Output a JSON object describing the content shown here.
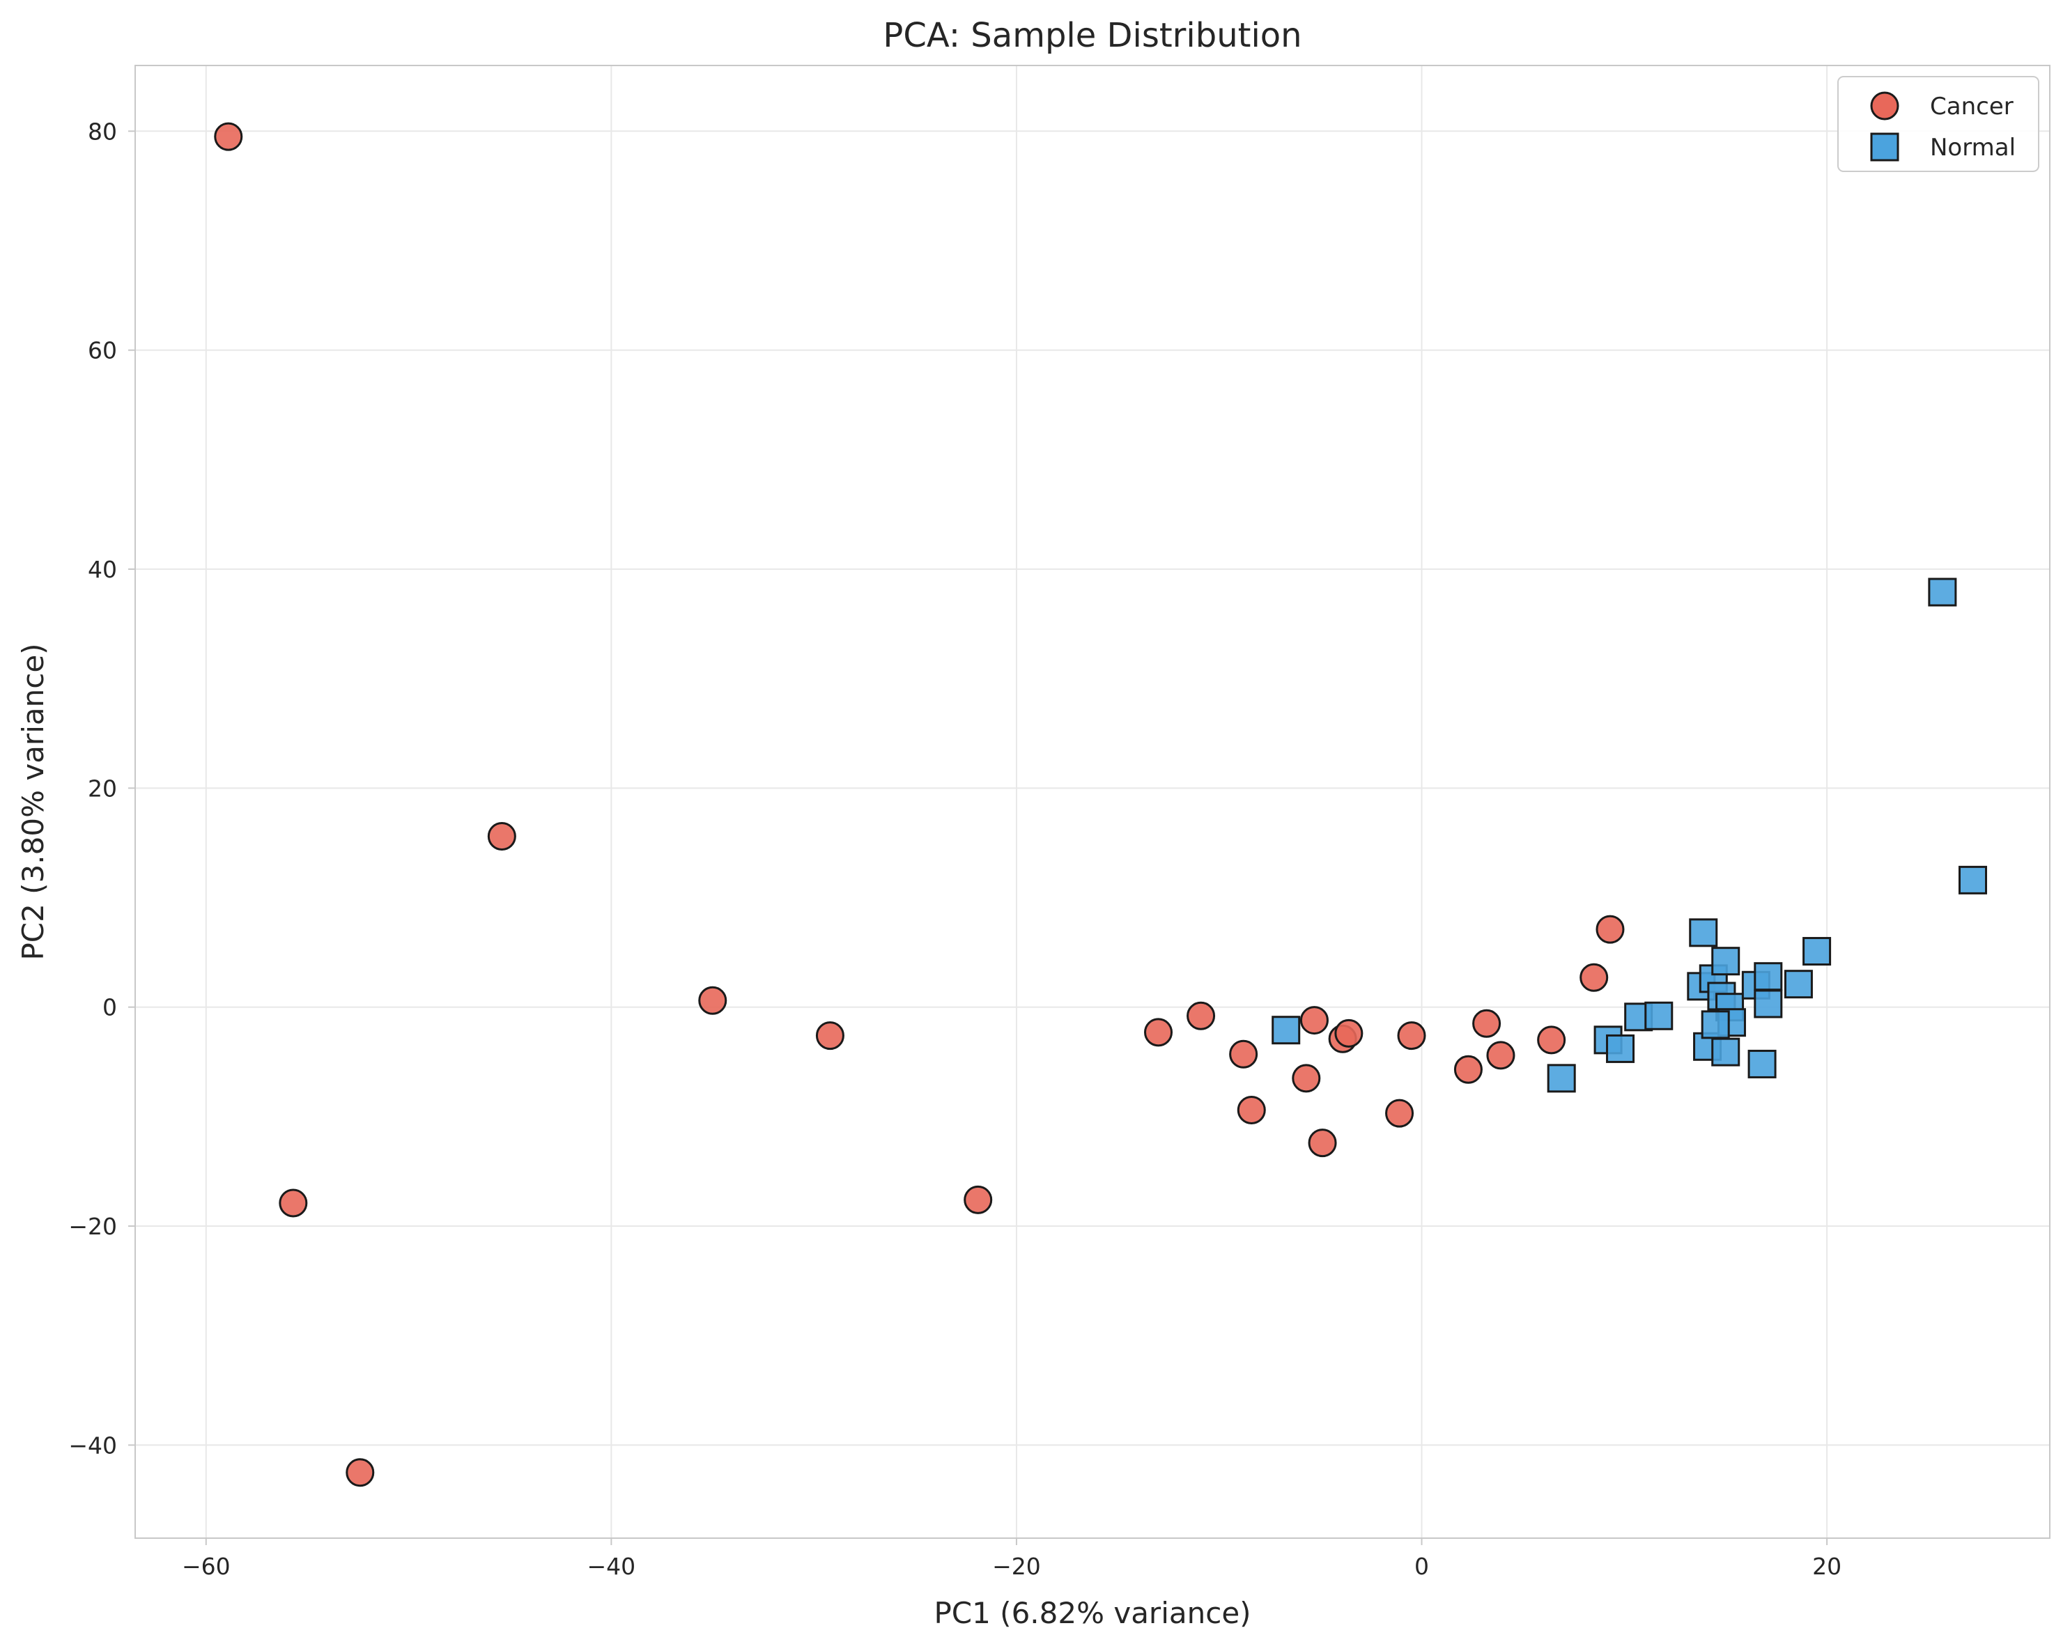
{
  "chart_data": {
    "type": "scatter",
    "title": "PCA: Sample Distribution",
    "xlabel": "PC1 (6.82% variance)",
    "ylabel": "PC2 (3.80% variance)",
    "xlim": [
      -63.5,
      31
    ],
    "ylim": [
      -48.5,
      86
    ],
    "xticks": [
      -60,
      -40,
      -20,
      0,
      20
    ],
    "yticks": [
      -40,
      -20,
      0,
      20,
      40,
      60,
      80
    ],
    "xtick_labels": [
      "−60",
      "−40",
      "−20",
      "0",
      "20"
    ],
    "ytick_labels": [
      "−40",
      "−20",
      "0",
      "20",
      "40",
      "60",
      "80"
    ],
    "grid": true,
    "legend": {
      "position": "top-right",
      "entries": [
        "Cancer",
        "Normal"
      ]
    },
    "series": [
      {
        "name": "Cancer",
        "marker": "circle",
        "color": "#e8685a",
        "points": [
          [
            -58.9,
            79.5
          ],
          [
            -45.4,
            15.6
          ],
          [
            -55.7,
            -17.9
          ],
          [
            -52.4,
            -42.5
          ],
          [
            -35.0,
            0.6
          ],
          [
            -29.2,
            -2.6
          ],
          [
            -21.9,
            -17.6
          ],
          [
            -13.0,
            -2.3
          ],
          [
            -10.9,
            -0.8
          ],
          [
            -8.8,
            -4.3
          ],
          [
            -8.4,
            -9.4
          ],
          [
            -5.7,
            -6.5
          ],
          [
            -5.3,
            -1.2
          ],
          [
            -4.9,
            -12.4
          ],
          [
            -3.9,
            -2.9
          ],
          [
            -3.6,
            -2.4
          ],
          [
            -1.1,
            -9.7
          ],
          [
            -0.5,
            -2.6
          ],
          [
            2.3,
            -5.7
          ],
          [
            3.2,
            -1.5
          ],
          [
            3.9,
            -4.4
          ],
          [
            6.4,
            -3.0
          ],
          [
            8.5,
            2.7
          ],
          [
            9.3,
            7.1
          ]
        ]
      },
      {
        "name": "Normal",
        "marker": "square",
        "color": "#4ba3de",
        "points": [
          [
            -6.7,
            -2.1
          ],
          [
            6.9,
            -6.5
          ],
          [
            9.2,
            -3.0
          ],
          [
            9.8,
            -3.8
          ],
          [
            10.7,
            -0.9
          ],
          [
            11.7,
            -0.8
          ],
          [
            13.9,
            6.8
          ],
          [
            13.8,
            1.9
          ],
          [
            14.1,
            -3.6
          ],
          [
            14.4,
            2.6
          ],
          [
            14.8,
            1.0
          ],
          [
            15.0,
            4.2
          ],
          [
            15.2,
            0.0
          ],
          [
            15.3,
            -1.4
          ],
          [
            15.0,
            -4.1
          ],
          [
            16.5,
            2.0
          ],
          [
            16.8,
            -5.2
          ],
          [
            17.1,
            2.8
          ],
          [
            17.1,
            0.3
          ],
          [
            18.6,
            2.1
          ],
          [
            19.5,
            5.1
          ],
          [
            25.7,
            37.9
          ],
          [
            27.2,
            11.6
          ],
          [
            14.5,
            -1.6
          ]
        ]
      }
    ]
  }
}
